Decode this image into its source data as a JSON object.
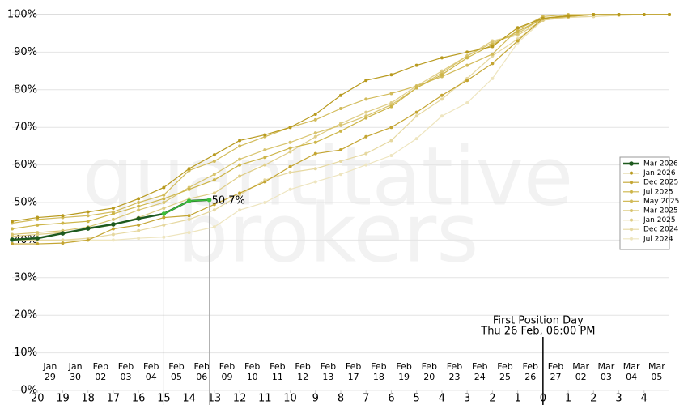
{
  "chart_data": {
    "type": "line",
    "watermark": [
      "quantitative",
      "brokers"
    ],
    "x": [
      -21,
      -20,
      -19,
      -18,
      -17,
      -16,
      -15,
      -14,
      -13,
      -12,
      -11,
      -10,
      -9,
      -8,
      -7,
      -6,
      -5,
      -4,
      -3,
      -2,
      -1,
      0,
      1,
      2,
      3,
      4,
      5
    ],
    "xlim": [
      -21,
      5
    ],
    "xticks": [
      {
        "value": -20,
        "label": "20"
      },
      {
        "value": -19,
        "label": "19"
      },
      {
        "value": -18,
        "label": "18"
      },
      {
        "value": -17,
        "label": "17"
      },
      {
        "value": -16,
        "label": "16"
      },
      {
        "value": -15,
        "label": "15"
      },
      {
        "value": -14,
        "label": "14"
      },
      {
        "value": -13,
        "label": "13"
      },
      {
        "value": -12,
        "label": "12"
      },
      {
        "value": -11,
        "label": "11"
      },
      {
        "value": -10,
        "label": "10"
      },
      {
        "value": -9,
        "label": "9"
      },
      {
        "value": -8,
        "label": "8"
      },
      {
        "value": -7,
        "label": "7"
      },
      {
        "value": -6,
        "label": "6"
      },
      {
        "value": -5,
        "label": "5"
      },
      {
        "value": -4,
        "label": "4"
      },
      {
        "value": -3,
        "label": "3"
      },
      {
        "value": -2,
        "label": "2"
      },
      {
        "value": -1,
        "label": "1"
      },
      0,
      1,
      2,
      3,
      4
    ],
    "date_ticks": [
      {
        "value": -19.5,
        "label": [
          "Jan",
          "29"
        ]
      },
      {
        "value": -18.5,
        "label": [
          "Jan",
          "30"
        ]
      },
      {
        "value": -17.5,
        "label": [
          "Feb",
          "02"
        ]
      },
      {
        "value": -16.5,
        "label": [
          "Feb",
          "03"
        ]
      },
      {
        "value": -15.5,
        "label": [
          "Feb",
          "04"
        ]
      },
      {
        "value": -14.5,
        "label": [
          "Feb",
          "05"
        ]
      },
      {
        "value": -13.5,
        "label": [
          "Feb",
          "06"
        ]
      },
      {
        "value": -12.5,
        "label": [
          "Feb",
          "09"
        ]
      },
      {
        "value": -11.5,
        "label": [
          "Feb",
          "10"
        ]
      },
      {
        "value": -10.5,
        "label": [
          "Feb",
          "11"
        ]
      },
      {
        "value": -9.5,
        "label": [
          "Feb",
          "12"
        ]
      },
      {
        "value": -8.5,
        "label": [
          "Feb",
          "13"
        ]
      },
      {
        "value": -7.5,
        "label": [
          "Feb",
          "17"
        ]
      },
      {
        "value": -6.5,
        "label": [
          "Feb",
          "18"
        ]
      },
      {
        "value": -5.5,
        "label": [
          "Feb",
          "19"
        ]
      },
      {
        "value": -4.5,
        "label": [
          "Feb",
          "20"
        ]
      },
      {
        "value": -3.5,
        "label": [
          "Feb",
          "23"
        ]
      },
      {
        "value": -2.5,
        "label": [
          "Feb",
          "24"
        ]
      },
      {
        "value": -1.5,
        "label": [
          "Feb",
          "25"
        ]
      },
      {
        "value": -0.5,
        "label": [
          "Feb",
          "26"
        ]
      },
      {
        "value": 0.5,
        "label": [
          "Feb",
          "27"
        ]
      },
      {
        "value": 1.5,
        "label": [
          "Mar",
          "02"
        ]
      },
      {
        "value": 2.5,
        "label": [
          "Mar",
          "03"
        ]
      },
      {
        "value": 3.5,
        "label": [
          "Mar",
          "04"
        ]
      },
      {
        "value": 4.5,
        "label": [
          "Mar",
          "05"
        ]
      }
    ],
    "ylim": [
      0,
      100
    ],
    "yticks": [
      {
        "value": 0,
        "label": "0%"
      },
      {
        "value": 10,
        "label": "10%"
      },
      {
        "value": 20,
        "label": "20%"
      },
      {
        "value": 30,
        "label": "30%"
      },
      {
        "value": 40,
        "label": "40%"
      },
      {
        "value": 50,
        "label": "50%"
      },
      {
        "value": 60,
        "label": "60%"
      },
      {
        "value": 70,
        "label": "70%"
      },
      {
        "value": 80,
        "label": "80%"
      },
      {
        "value": 90,
        "label": "90%"
      },
      {
        "value": 100,
        "label": "100%"
      }
    ],
    "grid": true,
    "legend": "right",
    "reference_lines": [
      -15,
      -13.2
    ],
    "annotations": [
      {
        "text": "50.7%",
        "x": -13.2,
        "y": 50.7
      },
      {
        "text": [
          "First Position Day",
          "Thu 26 Feb, 06:00 PM"
        ],
        "x": 0
      }
    ],
    "series": [
      {
        "name": "Mar 2026",
        "color": "#1e5a1e",
        "x": [
          -21,
          -20,
          -19,
          -18,
          -17,
          -16,
          -15,
          -14,
          -13.2
        ],
        "values": [
          40.1,
          40.5,
          41.8,
          43.1,
          44.2,
          45.7,
          47,
          50.4,
          50.7
        ]
      },
      {
        "name": "Jan 2026",
        "color": "#b89a1e",
        "values": [
          45,
          46,
          46.5,
          47.5,
          48.5,
          51,
          54,
          59,
          62.7,
          66.5,
          68,
          70,
          73.5,
          78.5,
          82.5,
          84,
          86.5,
          88.5,
          90,
          91.5,
          96.5,
          99,
          99.7,
          100,
          100,
          100,
          100
        ]
      },
      {
        "name": "Dec 2025",
        "color": "#c4a532",
        "values": [
          39,
          39,
          39.2,
          40,
          43,
          44,
          46,
          46.5,
          49.5,
          52.5,
          55.5,
          59.5,
          63,
          64,
          67.5,
          70,
          74,
          78.5,
          82.5,
          87,
          93,
          99,
          99.5,
          100,
          100,
          100,
          100
        ]
      },
      {
        "name": "Jul 2025",
        "color": "#cdb548",
        "values": [
          43,
          44,
          44.5,
          45,
          47,
          49,
          51,
          53.5,
          56,
          60,
          62,
          64.5,
          66,
          69,
          72.5,
          75.5,
          80.5,
          84,
          88.5,
          92,
          95.5,
          99,
          99.7,
          100,
          100,
          100,
          100
        ]
      },
      {
        "name": "May 2025",
        "color": "#d2bb5a",
        "values": [
          44.5,
          45.5,
          46,
          46.5,
          47.5,
          50,
          52,
          58.5,
          61,
          65,
          67.5,
          70,
          72,
          75,
          77.5,
          79,
          81,
          83.5,
          86.5,
          89.5,
          96,
          99.5,
          100,
          100,
          100,
          100,
          100
        ]
      },
      {
        "name": "Mar 2025",
        "color": "#d8c46e",
        "values": [
          41.5,
          42,
          42.5,
          43.5,
          45.5,
          48,
          50,
          54,
          57.5,
          61.5,
          64,
          66,
          68.5,
          70.5,
          73,
          76,
          80.5,
          84.5,
          89,
          92.5,
          95,
          99,
          99.5,
          100,
          100,
          100,
          100
        ]
      },
      {
        "name": "Jan 2025",
        "color": "#dfcd86",
        "values": [
          41,
          41.5,
          42,
          43,
          44,
          46,
          48.5,
          51,
          52.5,
          57,
          60,
          63.5,
          67.5,
          71,
          74,
          76.5,
          81,
          85,
          89,
          93,
          94.5,
          98.5,
          99.5,
          100,
          100,
          100,
          100
        ]
      },
      {
        "name": "Dec 2024",
        "color": "#e6d8a0",
        "values": [
          40,
          40,
          40,
          40.5,
          41.5,
          42.5,
          44,
          45.5,
          48,
          52,
          56,
          58,
          59,
          61,
          63,
          66.5,
          73,
          77.5,
          83,
          89,
          93.5,
          98.5,
          99.3,
          99.5,
          99.8,
          100,
          100
        ]
      },
      {
        "name": "Jul 2024",
        "color": "#eee5bf",
        "values": [
          40,
          40,
          40,
          40,
          40,
          40.5,
          40.8,
          42,
          43.5,
          48,
          50,
          53.5,
          55.5,
          57.5,
          60,
          62.5,
          67,
          73,
          76.5,
          83,
          92.5,
          98.5,
          99.2,
          99.5,
          99.8,
          100,
          100
        ]
      }
    ]
  }
}
